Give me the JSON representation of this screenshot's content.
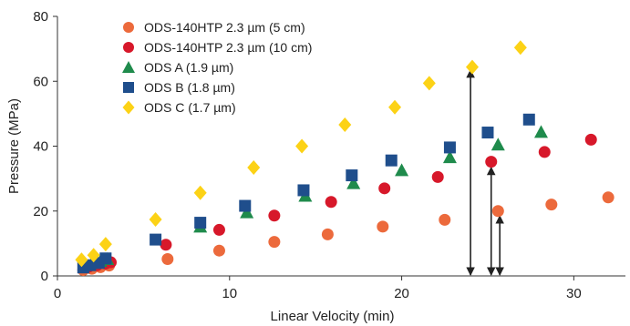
{
  "chart_data": {
    "type": "scatter",
    "xlabel": "Linear Velocity (min)",
    "ylabel": "Pressure (MPa)",
    "xlim": [
      0,
      33
    ],
    "ylim": [
      0,
      80
    ],
    "x_ticks": [
      0,
      10,
      20,
      30
    ],
    "y_ticks": [
      0,
      20,
      40,
      60,
      80
    ],
    "grid": false,
    "legend_position": "top-left",
    "series": [
      {
        "name": "ODS-140HTP 2.3 µm (5 cm)",
        "color": "#ec6a3c",
        "marker": "circle",
        "points": [
          [
            1.5,
            1.8
          ],
          [
            2.0,
            2.2
          ],
          [
            2.5,
            2.7
          ],
          [
            3.0,
            3.2
          ],
          [
            6.4,
            5.2
          ],
          [
            9.4,
            7.8
          ],
          [
            12.6,
            10.5
          ],
          [
            15.7,
            12.8
          ],
          [
            18.9,
            15.2
          ],
          [
            22.5,
            17.3
          ],
          [
            25.6,
            20.0
          ],
          [
            28.7,
            22.0
          ],
          [
            32.0,
            24.2
          ]
        ]
      },
      {
        "name": "ODS-140HTP 2.3 µm (10 cm)",
        "color": "#d7182a",
        "marker": "circle",
        "points": [
          [
            1.8,
            2.8
          ],
          [
            2.3,
            3.3
          ],
          [
            2.8,
            3.8
          ],
          [
            3.1,
            4.2
          ],
          [
            6.3,
            9.6
          ],
          [
            9.4,
            14.2
          ],
          [
            12.6,
            18.6
          ],
          [
            15.9,
            22.8
          ],
          [
            19.0,
            27.0
          ],
          [
            22.1,
            30.5
          ],
          [
            25.2,
            35.2
          ],
          [
            28.3,
            38.2
          ],
          [
            31.0,
            42.0
          ]
        ]
      },
      {
        "name": "ODS A (1.9 µm)",
        "color": "#1f8b4c",
        "marker": "triangle",
        "points": [
          [
            1.6,
            3.4
          ],
          [
            2.0,
            4.0
          ],
          [
            2.5,
            4.6
          ],
          [
            2.9,
            5.2
          ],
          [
            8.3,
            15.2
          ],
          [
            11.0,
            19.6
          ],
          [
            14.4,
            24.7
          ],
          [
            17.2,
            28.6
          ],
          [
            20.0,
            32.6
          ],
          [
            22.8,
            36.6
          ],
          [
            25.6,
            40.5
          ],
          [
            28.1,
            44.4
          ]
        ]
      },
      {
        "name": "ODS B (1.8 µm)",
        "color": "#1f4e8c",
        "marker": "square",
        "points": [
          [
            1.5,
            2.6
          ],
          [
            1.9,
            3.3
          ],
          [
            2.4,
            4.0
          ],
          [
            2.8,
            5.4
          ],
          [
            5.7,
            11.2
          ],
          [
            8.3,
            16.4
          ],
          [
            10.9,
            21.6
          ],
          [
            14.3,
            26.4
          ],
          [
            17.1,
            31.0
          ],
          [
            19.4,
            35.6
          ],
          [
            22.8,
            39.6
          ],
          [
            25.0,
            44.2
          ],
          [
            27.4,
            48.2
          ]
        ]
      },
      {
        "name": "ODS C (1.7 µm)",
        "color": "#fcd216",
        "marker": "diamond",
        "points": [
          [
            1.4,
            5.0
          ],
          [
            2.1,
            6.4
          ],
          [
            2.8,
            9.8
          ],
          [
            5.7,
            17.4
          ],
          [
            8.3,
            25.6
          ],
          [
            11.4,
            33.4
          ],
          [
            14.2,
            40.0
          ],
          [
            16.7,
            46.6
          ],
          [
            19.6,
            52.0
          ],
          [
            21.6,
            59.4
          ],
          [
            24.1,
            64.4
          ],
          [
            26.9,
            70.4
          ]
        ]
      }
    ],
    "annotations": [
      {
        "type": "double-arrow",
        "x": 24.0,
        "y_from": 0,
        "y_to": 63.5
      },
      {
        "type": "double-arrow",
        "x": 25.2,
        "y_from": 0,
        "y_to": 33.5
      },
      {
        "type": "double-arrow",
        "x": 25.7,
        "y_from": 0,
        "y_to": 18.5
      }
    ]
  }
}
